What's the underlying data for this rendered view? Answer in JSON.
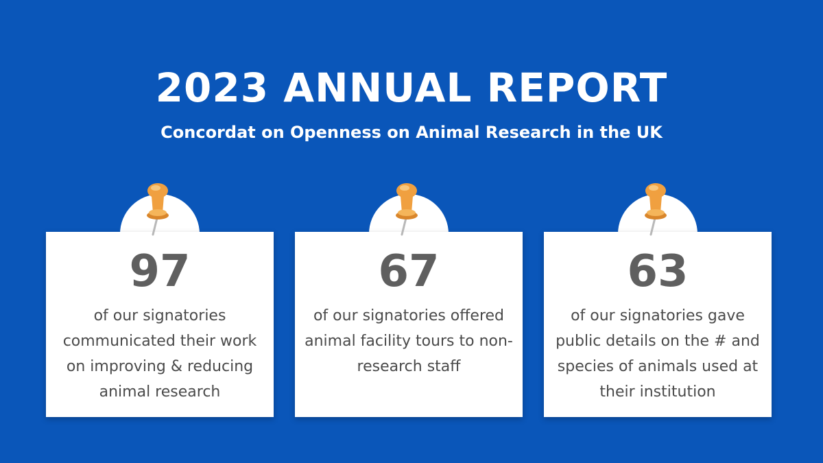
{
  "header": {
    "title": "2023 ANNUAL REPORT",
    "subtitle": "Concordat on Openness on Animal Research in the UK"
  },
  "colors": {
    "background": "#0a56b9",
    "card": "#ffffff",
    "number": "#5f5f5f",
    "text": "#4a4a4a",
    "pin": "#f0a040"
  },
  "cards": [
    {
      "number": "97",
      "text": "of our signatories communicated their work on improving & reducing animal research",
      "icon": "pushpin-icon"
    },
    {
      "number": "67",
      "text": "of our signatories offered animal facility tours to non-research staff",
      "icon": "pushpin-icon"
    },
    {
      "number": "63",
      "text": "of our signatories gave public details on the # and species of animals used at their institution",
      "icon": "pushpin-icon"
    }
  ]
}
